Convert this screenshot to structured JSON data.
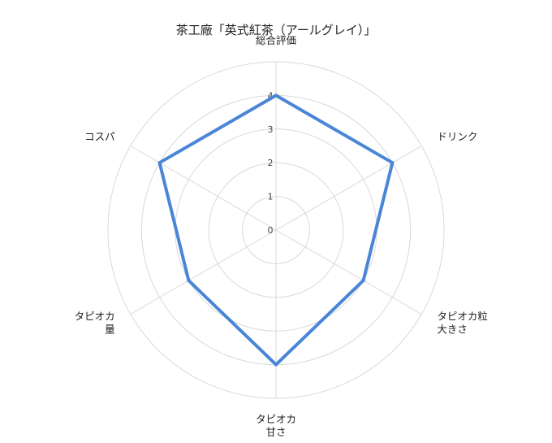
{
  "chart_data": {
    "type": "radar",
    "title": "茶工廠「英式紅茶（アールグレイ）」",
    "axes": [
      [
        "総合評価"
      ],
      [
        "ドリンク"
      ],
      [
        "タピオカ粒",
        "大きさ"
      ],
      [
        "タピオカ",
        "甘さ"
      ],
      [
        "タピオカ",
        "量"
      ],
      [
        "コスパ"
      ]
    ],
    "rlim": [
      0,
      5
    ],
    "ticks": [
      "0",
      "1",
      "2",
      "3",
      "4"
    ],
    "tick_values": [
      0,
      1,
      2,
      3,
      4
    ],
    "series": [
      {
        "values": [
          4,
          4,
          3,
          4,
          3,
          4
        ],
        "color": "#4a86d8"
      }
    ],
    "grid": true,
    "grid_color": "#d9d9d9"
  }
}
